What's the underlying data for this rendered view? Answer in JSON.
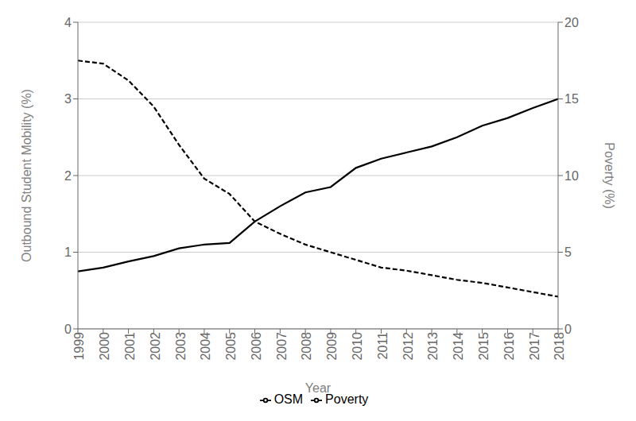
{
  "chart_data": {
    "type": "line",
    "x": [
      1999,
      2000,
      2001,
      2002,
      2003,
      2004,
      2005,
      2006,
      2007,
      2008,
      2009,
      2010,
      2011,
      2012,
      2013,
      2014,
      2015,
      2016,
      2017,
      2018
    ],
    "xlim": [
      1999,
      2018
    ],
    "xticks": [
      1999,
      2000,
      2001,
      2002,
      2003,
      2004,
      2005,
      2006,
      2007,
      2008,
      2009,
      2010,
      2011,
      2012,
      2013,
      2014,
      2015,
      2016,
      2017,
      2018
    ],
    "xlabel": "Year",
    "ylabel": "Outbound Student Mobility (%)",
    "y2label": "Poverty (%)",
    "ylim": [
      0,
      4
    ],
    "yticks": [
      0,
      1,
      2,
      3,
      4
    ],
    "y2lim": [
      0,
      20
    ],
    "y2ticks": [
      0,
      5,
      10,
      15,
      20
    ],
    "grid": true,
    "legend": "bottom",
    "series": [
      {
        "name": "OSM",
        "color": "black",
        "line_style": "solid",
        "values": [
          0.75,
          0.8,
          0.88,
          0.95,
          1.05,
          1.1,
          1.12,
          1.4,
          1.6,
          1.78,
          1.85,
          2.1,
          2.22,
          2.3,
          2.38,
          2.5,
          2.65,
          2.75,
          2.88,
          3.0
        ]
      },
      {
        "name": "Poverty",
        "color": "black",
        "line_style": "dashed",
        "axis": "y2",
        "values": [
          17.5,
          17.3,
          16.2,
          14.5,
          12.0,
          9.8,
          8.8,
          7.0,
          6.2,
          5.5,
          5.0,
          4.5,
          4.0,
          3.8,
          3.5,
          3.2,
          3.0,
          2.7,
          2.4,
          2.1
        ]
      }
    ]
  }
}
